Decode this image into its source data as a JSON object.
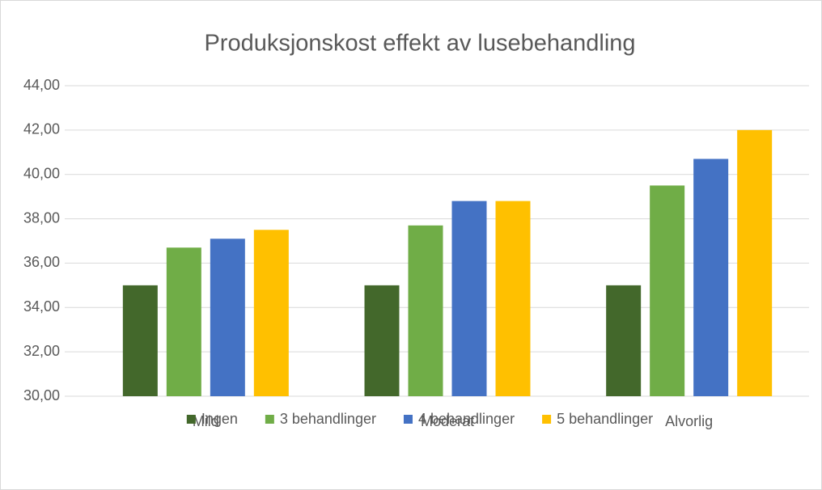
{
  "chart_data": {
    "type": "bar",
    "title": "Produksjonskost effekt av lusebehandling",
    "categories": [
      "Mild",
      "Moderat",
      "Alvorlig"
    ],
    "series": [
      {
        "name": "Ingen",
        "color": "#43682b",
        "values": [
          35.0,
          35.0,
          35.0
        ]
      },
      {
        "name": "3 behandlinger",
        "color": "#70ad47",
        "values": [
          36.7,
          37.7,
          39.5
        ]
      },
      {
        "name": "4 behandlinger",
        "color": "#4472c4",
        "values": [
          37.1,
          38.8,
          40.7
        ]
      },
      {
        "name": "5 behandlinger",
        "color": "#ffc000",
        "values": [
          37.5,
          38.8,
          42.0
        ]
      }
    ],
    "ylim": [
      30,
      44
    ],
    "yticks": [
      {
        "value": 30,
        "label": "30,00"
      },
      {
        "value": 32,
        "label": "32,00"
      },
      {
        "value": 34,
        "label": "34,00"
      },
      {
        "value": 36,
        "label": "36,00"
      },
      {
        "value": 38,
        "label": "38,00"
      },
      {
        "value": 40,
        "label": "40,00"
      },
      {
        "value": 42,
        "label": "42,00"
      },
      {
        "value": 44,
        "label": "44,00"
      }
    ],
    "grid": true,
    "legend": "bottom"
  }
}
